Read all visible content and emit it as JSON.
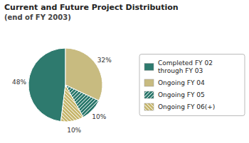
{
  "chart_data": {
    "type": "pie",
    "title": "Current and Future Project Distribution",
    "subtitle": "(end of FY 2003)",
    "categories": [
      "Completed FY 02\nthrough FY 03",
      "Ongoing FY 04",
      "Ongoing FY 05",
      "Ongoing FY 06(+)"
    ],
    "values": [
      48,
      32,
      10,
      10
    ],
    "value_labels": [
      "48%",
      "32%",
      "10%",
      "10%"
    ],
    "colors": [
      "#2e7a6e",
      "#c8bb80",
      "#2e7a6e",
      "#c8b870"
    ],
    "data_labels": true,
    "legend": "right"
  }
}
